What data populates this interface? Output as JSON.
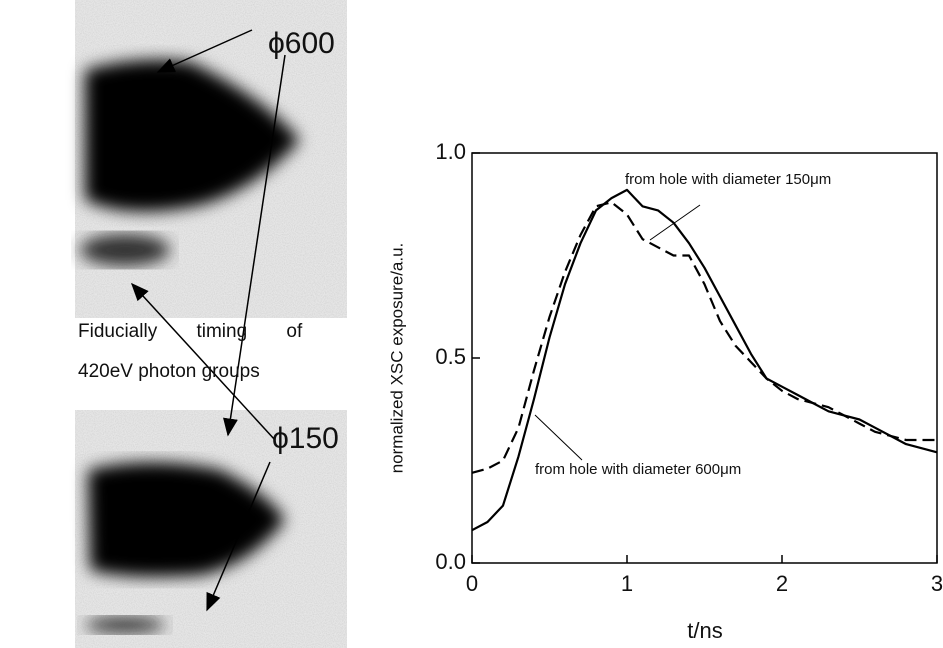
{
  "images": {
    "top_label": "ϕ600",
    "bottom_label": "ϕ150",
    "caption_line1": "Fiducially timing of",
    "caption_line2": "420eV photon groups"
  },
  "chart_data": {
    "type": "line",
    "x": [
      0,
      0.1,
      0.2,
      0.3,
      0.4,
      0.5,
      0.6,
      0.7,
      0.8,
      0.9,
      1.0,
      1.1,
      1.2,
      1.3,
      1.4,
      1.5,
      1.6,
      1.7,
      1.8,
      1.9,
      2.0,
      2.1,
      2.2,
      2.3,
      2.4,
      2.5,
      2.6,
      2.7,
      2.8,
      2.9,
      3.0
    ],
    "series": [
      {
        "color": "#000000",
        "dash": "solid",
        "values": [
          0.08,
          0.1,
          0.14,
          0.26,
          0.4,
          0.55,
          0.68,
          0.78,
          0.86,
          0.89,
          0.91,
          0.87,
          0.86,
          0.83,
          0.78,
          0.72,
          0.65,
          0.58,
          0.51,
          0.45,
          0.43,
          0.41,
          0.39,
          0.37,
          0.36,
          0.35,
          0.33,
          0.31,
          0.29,
          0.28,
          0.27
        ]
      },
      {
        "color": "#000000",
        "dash": "dashed",
        "values": [
          0.22,
          0.23,
          0.25,
          0.33,
          0.47,
          0.6,
          0.71,
          0.8,
          0.87,
          0.88,
          0.85,
          0.79,
          0.77,
          0.75,
          0.75,
          0.68,
          0.59,
          0.53,
          0.49,
          0.45,
          0.42,
          0.4,
          0.39,
          0.38,
          0.36,
          0.34,
          0.32,
          0.31,
          0.3,
          0.3,
          0.3
        ]
      }
    ],
    "xlabel": "t/ns",
    "ylabel": "normalized XSC exposure/a.u.",
    "xlim": [
      0,
      3
    ],
    "xticks": [
      0,
      1,
      2,
      3
    ],
    "ylim": [
      0,
      1
    ],
    "yticks": [
      {
        "value": 0,
        "label": "0.0"
      },
      0.5,
      {
        "value": 1,
        "label": "1.0"
      }
    ],
    "annotations": [
      "from hole with diameter 150μm",
      "from hole with diameter 600μm"
    ]
  }
}
